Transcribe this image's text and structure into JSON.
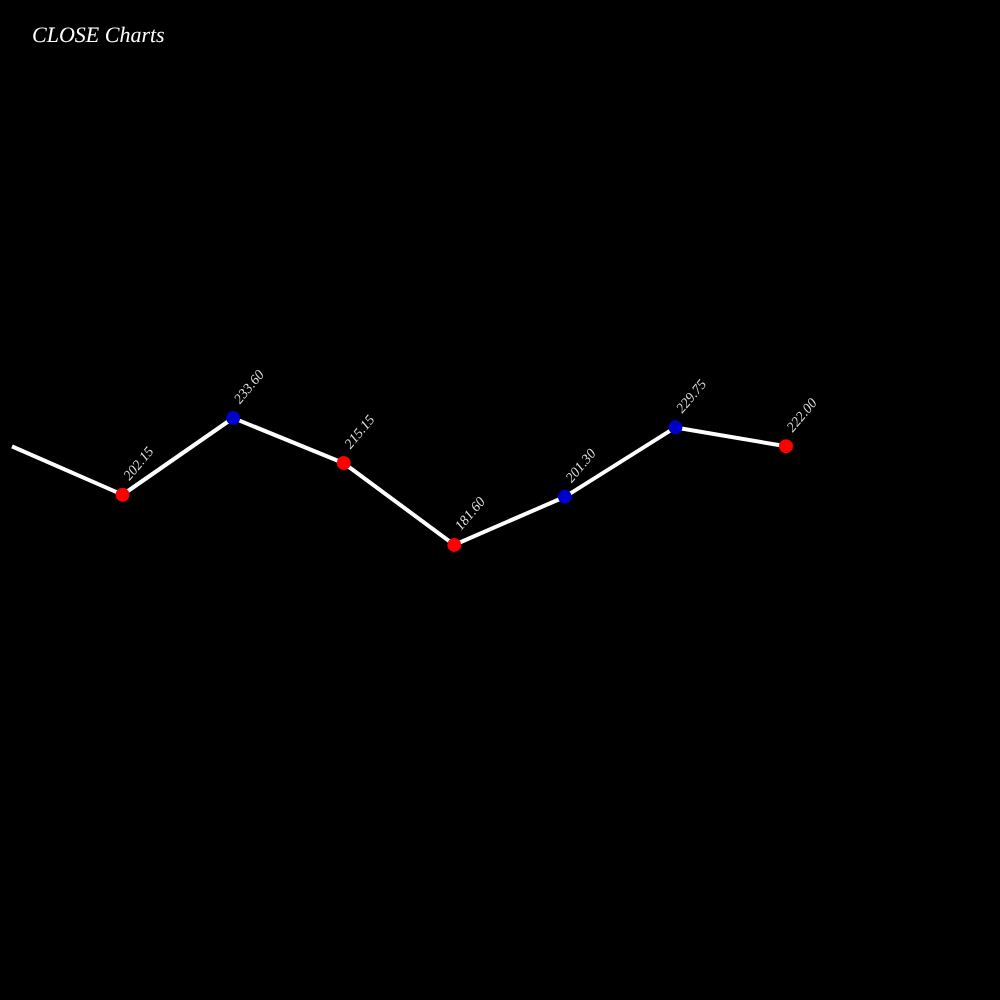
{
  "chart_data": {
    "type": "line",
    "title": "CLOSE Charts",
    "categories": [
      null,
      null,
      null,
      null,
      null,
      null,
      null,
      null
    ],
    "series": [
      {
        "color": "#ffffff",
        "values": [
          222,
          202.15,
          233.6,
          215.15,
          181.6,
          201.3,
          229.75,
          222
        ],
        "colors": [
          null,
          "#ff0000",
          "#0000cc",
          "#ff0000",
          "#ff0000",
          "#0000cc",
          "#0000cc",
          "#ff0000"
        ],
        "value_labels": [
          null,
          "202.15",
          "233.60",
          "215.15",
          "181.60",
          "201.30",
          "229.75",
          "222.00"
        ]
      }
    ],
    "legend": false,
    "marker": "circle",
    "line_style": "solid"
  }
}
